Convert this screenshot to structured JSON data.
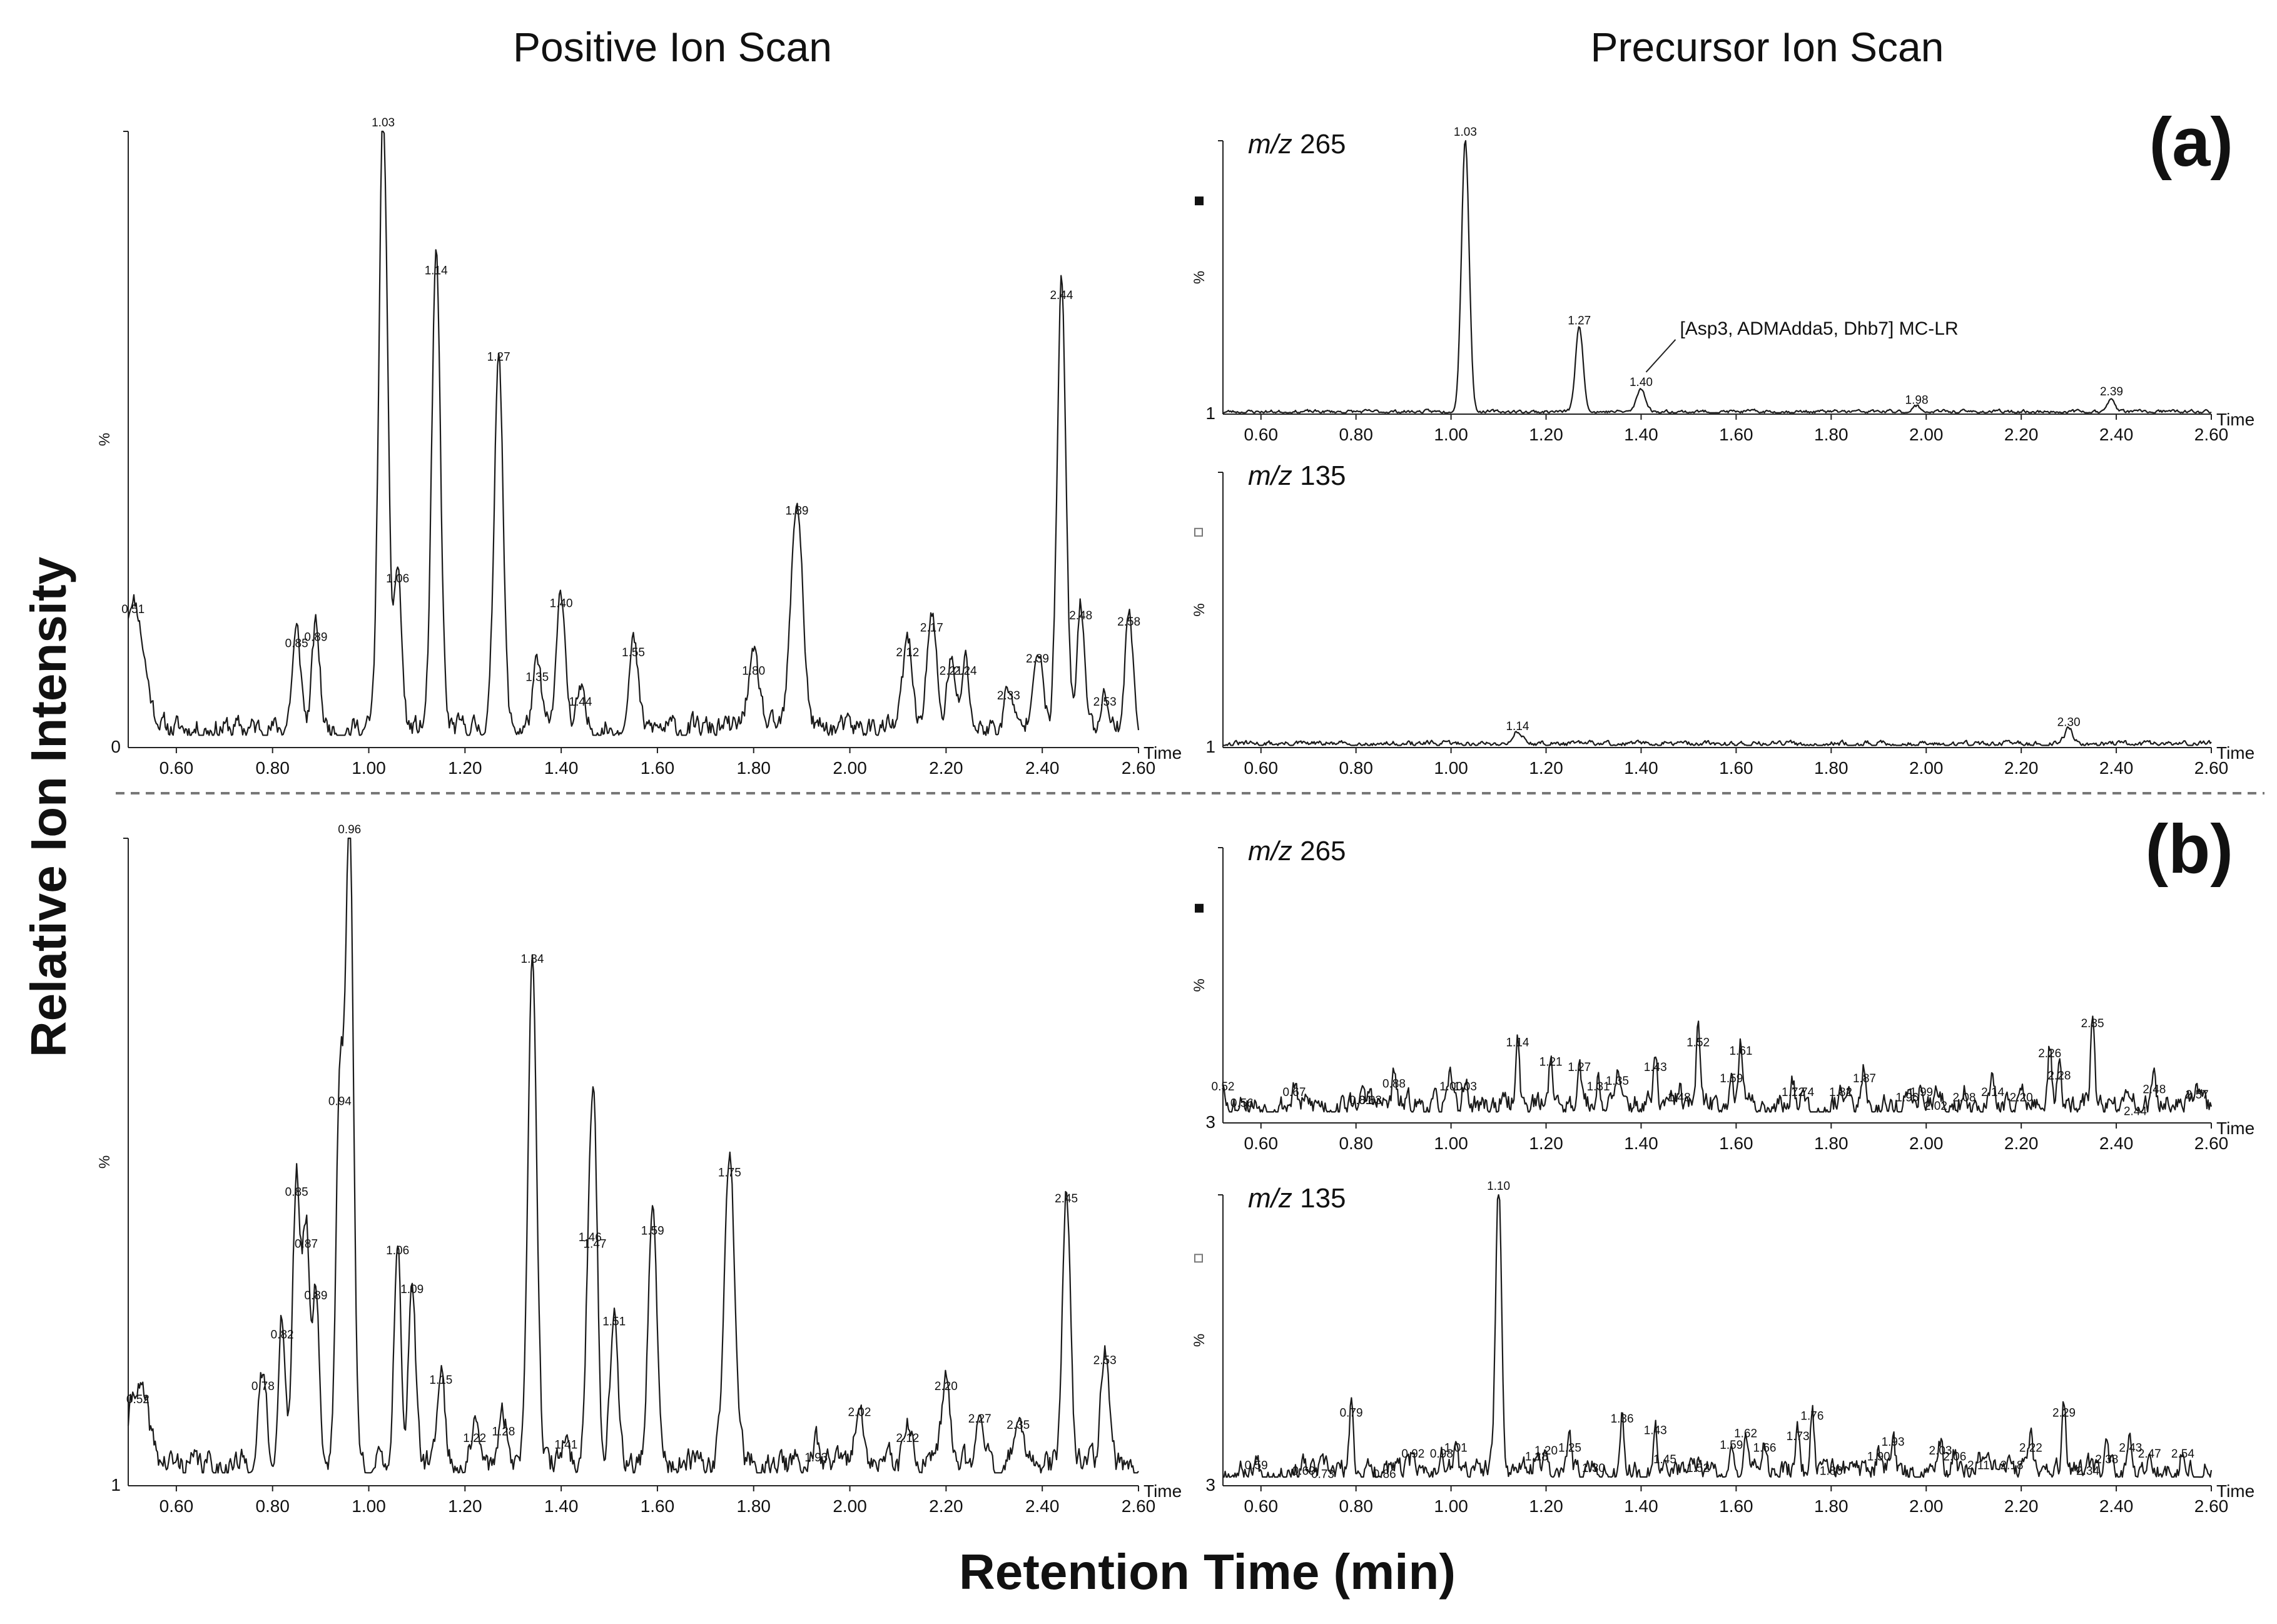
{
  "titles": {
    "left": "Positive Ion Scan",
    "right": "Precursor Ion Scan",
    "y_axis": "Relative Ion Intensity",
    "x_axis": "Retention Time (min)",
    "panel_a": "(a)",
    "panel_b": "(b)"
  },
  "chart_data": [
    {
      "id": "a-pos",
      "type": "line",
      "panel": "(a)",
      "column": "Positive Ion Scan",
      "trace_label": "",
      "ylabel": "%",
      "baseline_label": "0",
      "xlim": [
        0.5,
        2.6
      ],
      "xticks": [
        0.6,
        0.8,
        1.0,
        1.2,
        1.4,
        1.6,
        1.8,
        2.0,
        2.2,
        2.4,
        2.6
      ],
      "time_label": "Time",
      "noise": {
        "seed": 11,
        "amp": 0.035,
        "base": 0.02
      },
      "peaks": [
        [
          0.51,
          0.21,
          0.022
        ],
        [
          0.85,
          0.155,
          0.009
        ],
        [
          0.89,
          0.165,
          0.008
        ],
        [
          1.03,
          1.0,
          0.009
        ],
        [
          1.06,
          0.26,
          0.008
        ],
        [
          1.14,
          0.76,
          0.009
        ],
        [
          1.27,
          0.62,
          0.009
        ],
        [
          1.35,
          0.1,
          0.009
        ],
        [
          1.4,
          0.22,
          0.009
        ],
        [
          1.44,
          0.06,
          0.007
        ],
        [
          1.55,
          0.14,
          0.009
        ],
        [
          1.8,
          0.11,
          0.012
        ],
        [
          1.89,
          0.37,
          0.012
        ],
        [
          2.12,
          0.14,
          0.01
        ],
        [
          2.17,
          0.18,
          0.01
        ],
        [
          2.21,
          0.11,
          0.008
        ],
        [
          2.24,
          0.11,
          0.008
        ],
        [
          2.33,
          0.07,
          0.008
        ],
        [
          2.39,
          0.13,
          0.01
        ],
        [
          2.44,
          0.72,
          0.009
        ],
        [
          2.48,
          0.2,
          0.008
        ],
        [
          2.53,
          0.06,
          0.008
        ],
        [
          2.58,
          0.19,
          0.008
        ]
      ],
      "labels": [
        "0.51",
        "0.85",
        "0.89",
        "1.03",
        "1.06",
        "1.14",
        "1.27",
        "1.35",
        "1.40",
        "1.44",
        "1.55",
        "1.80",
        "1.89",
        "2.12",
        "2.17",
        "2.21",
        "2.24",
        "2.33",
        "2.39",
        "2.44",
        "2.48",
        "2.53",
        "2.58"
      ]
    },
    {
      "id": "a-265",
      "type": "line",
      "panel": "(a)",
      "column": "Precursor Ion Scan",
      "trace_label_prefix": "m/z",
      "trace_label_value": "265",
      "ylabel": "%",
      "baseline_label": "1",
      "xlim": [
        0.52,
        2.6
      ],
      "xticks": [
        0.6,
        0.8,
        1.0,
        1.2,
        1.4,
        1.6,
        1.8,
        2.0,
        2.2,
        2.4,
        2.6
      ],
      "time_label": "Time",
      "noise": {
        "seed": 23,
        "amp": 0.012,
        "base": 0.005
      },
      "peaks": [
        [
          1.03,
          1.0,
          0.008
        ],
        [
          1.27,
          0.31,
          0.008
        ],
        [
          1.4,
          0.085,
          0.009
        ],
        [
          1.98,
          0.02,
          0.008
        ],
        [
          2.39,
          0.05,
          0.007
        ]
      ],
      "labels": [
        "1.03",
        "1.27",
        "1.40",
        "1.98",
        "2.39"
      ],
      "annotation": {
        "text": "[Asp3, ADMAdda5, Dhb7] MC-LR",
        "peak": "1.40"
      }
    },
    {
      "id": "a-135",
      "type": "line",
      "panel": "(a)",
      "column": "Precursor Ion Scan",
      "trace_label_prefix": "m/z",
      "trace_label_value": "135",
      "ylabel": "%",
      "baseline_label": "1",
      "xlim": [
        0.52,
        2.6
      ],
      "xticks": [
        0.6,
        0.8,
        1.0,
        1.2,
        1.4,
        1.6,
        1.8,
        2.0,
        2.2,
        2.4,
        2.6
      ],
      "time_label": "Time",
      "noise": {
        "seed": 31,
        "amp": 0.018,
        "base": 0.008
      },
      "peaks": [
        [
          1.14,
          0.045,
          0.01
        ],
        [
          2.3,
          0.06,
          0.008
        ]
      ],
      "labels": [
        "1.14",
        "2.30"
      ]
    },
    {
      "id": "b-pos",
      "type": "line",
      "panel": "(b)",
      "column": "Positive Ion Scan",
      "trace_label": "",
      "ylabel": "%",
      "baseline_label": "1",
      "xlim": [
        0.5,
        2.6
      ],
      "xticks": [
        0.6,
        0.8,
        1.0,
        1.2,
        1.4,
        1.6,
        1.8,
        2.0,
        2.2,
        2.4,
        2.6
      ],
      "time_label": "Time",
      "noise": {
        "seed": 41,
        "amp": 0.04,
        "base": 0.02
      },
      "peaks": [
        [
          0.52,
          0.12,
          0.02
        ],
        [
          0.78,
          0.14,
          0.008
        ],
        [
          0.82,
          0.22,
          0.007
        ],
        [
          0.85,
          0.44,
          0.008
        ],
        [
          0.87,
          0.36,
          0.007
        ],
        [
          0.89,
          0.28,
          0.007
        ],
        [
          0.94,
          0.58,
          0.008
        ],
        [
          0.96,
          1.0,
          0.008
        ],
        [
          1.06,
          0.35,
          0.007
        ],
        [
          1.09,
          0.29,
          0.007
        ],
        [
          1.15,
          0.15,
          0.008
        ],
        [
          1.22,
          0.06,
          0.007
        ],
        [
          1.28,
          0.07,
          0.009
        ],
        [
          1.34,
          0.8,
          0.009
        ],
        [
          1.41,
          0.05,
          0.006
        ],
        [
          1.46,
          0.37,
          0.008
        ],
        [
          1.47,
          0.36,
          0.007
        ],
        [
          1.51,
          0.24,
          0.008
        ],
        [
          1.59,
          0.38,
          0.009
        ],
        [
          1.75,
          0.47,
          0.011
        ],
        [
          1.93,
          0.03,
          0.008
        ],
        [
          2.02,
          0.1,
          0.008
        ],
        [
          2.12,
          0.06,
          0.008
        ],
        [
          2.2,
          0.14,
          0.008
        ],
        [
          2.27,
          0.09,
          0.008
        ],
        [
          2.35,
          0.08,
          0.008
        ],
        [
          2.45,
          0.43,
          0.008
        ],
        [
          2.53,
          0.18,
          0.008
        ]
      ],
      "labels": [
        "0.52",
        "0.78",
        "0.82",
        "0.85",
        "0.87",
        "0.89",
        "0.94",
        "0.96",
        "1.06",
        "1.09",
        "1.15",
        "1.22",
        "1.28",
        "1.34",
        "1.41",
        "1.46",
        "1.47",
        "1.51",
        "1.59",
        "1.75",
        "1.93",
        "2.02",
        "2.12",
        "2.20",
        "2.27",
        "2.35",
        "2.45",
        "2.53"
      ]
    },
    {
      "id": "b-265",
      "type": "line",
      "panel": "(b)",
      "column": "Precursor Ion Scan",
      "trace_label_prefix": "m/z",
      "trace_label_value": "265",
      "ylabel": "%",
      "baseline_label": "3",
      "xlim": [
        0.52,
        2.6
      ],
      "xticks": [
        0.6,
        0.8,
        1.0,
        1.2,
        1.4,
        1.6,
        1.8,
        2.0,
        2.2,
        2.4,
        2.6
      ],
      "time_label": "Time",
      "noise": {
        "seed": 53,
        "amp": 0.08,
        "base": 0.04
      },
      "peaks": [
        [
          0.52,
          0.1,
          0.004
        ],
        [
          0.56,
          0.04,
          0.004
        ],
        [
          0.67,
          0.08,
          0.004
        ],
        [
          0.81,
          0.05,
          0.004
        ],
        [
          0.83,
          0.05,
          0.004
        ],
        [
          0.88,
          0.11,
          0.004
        ],
        [
          1.0,
          0.1,
          0.004
        ],
        [
          1.03,
          0.1,
          0.004
        ],
        [
          1.14,
          0.26,
          0.004
        ],
        [
          1.21,
          0.19,
          0.004
        ],
        [
          1.27,
          0.17,
          0.004
        ],
        [
          1.31,
          0.1,
          0.004
        ],
        [
          1.35,
          0.12,
          0.004
        ],
        [
          1.43,
          0.17,
          0.004
        ],
        [
          1.48,
          0.06,
          0.004
        ],
        [
          1.52,
          0.26,
          0.004
        ],
        [
          1.59,
          0.13,
          0.004
        ],
        [
          1.61,
          0.23,
          0.004
        ],
        [
          1.72,
          0.08,
          0.004
        ],
        [
          1.74,
          0.08,
          0.004
        ],
        [
          1.82,
          0.08,
          0.004
        ],
        [
          1.87,
          0.13,
          0.004
        ],
        [
          1.96,
          0.06,
          0.004
        ],
        [
          1.99,
          0.08,
          0.004
        ],
        [
          2.02,
          0.03,
          0.004
        ],
        [
          2.08,
          0.06,
          0.004
        ],
        [
          2.14,
          0.08,
          0.004
        ],
        [
          2.2,
          0.06,
          0.004
        ],
        [
          2.26,
          0.22,
          0.004
        ],
        [
          2.28,
          0.14,
          0.004
        ],
        [
          2.35,
          0.33,
          0.004
        ],
        [
          2.44,
          0.01,
          0.004
        ],
        [
          2.48,
          0.09,
          0.004
        ],
        [
          2.57,
          0.07,
          0.004
        ]
      ],
      "labels": [
        "0.52",
        "0.56",
        "0.67",
        "0.81",
        "0.83",
        "0.88",
        "1.00",
        "1.03",
        "1.14",
        "1.21",
        "1.27",
        "1.31",
        "1.35",
        "1.43",
        "1.48",
        "1.52",
        "1.59",
        "1.61",
        "1.72",
        "1.74",
        "1.82",
        "1.87",
        "1.96",
        "1.99",
        "2.02",
        "2.08",
        "2.14",
        "2.20",
        "2.26",
        "2.28",
        "2.35",
        "2.44",
        "2.48",
        "2.57"
      ]
    },
    {
      "id": "b-135",
      "type": "line",
      "panel": "(b)",
      "column": "Precursor Ion Scan",
      "trace_label_prefix": "m/z",
      "trace_label_value": "135",
      "ylabel": "%",
      "baseline_label": "3",
      "xlim": [
        0.52,
        2.6
      ],
      "xticks": [
        0.6,
        0.8,
        1.0,
        1.2,
        1.4,
        1.6,
        1.8,
        2.0,
        2.2,
        2.4,
        2.6
      ],
      "time_label": "Time",
      "noise": {
        "seed": 67,
        "amp": 0.07,
        "base": 0.03
      },
      "peaks": [
        [
          0.59,
          0.04,
          0.004
        ],
        [
          0.69,
          0.02,
          0.004
        ],
        [
          0.73,
          0.01,
          0.004
        ],
        [
          0.79,
          0.22,
          0.004
        ],
        [
          0.86,
          0.01,
          0.004
        ],
        [
          0.92,
          0.08,
          0.004
        ],
        [
          0.98,
          0.08,
          0.004
        ],
        [
          1.01,
          0.1,
          0.004
        ],
        [
          1.1,
          1.0,
          0.006
        ],
        [
          1.18,
          0.07,
          0.004
        ],
        [
          1.2,
          0.09,
          0.004
        ],
        [
          1.25,
          0.1,
          0.004
        ],
        [
          1.3,
          0.03,
          0.004
        ],
        [
          1.36,
          0.2,
          0.004
        ],
        [
          1.43,
          0.16,
          0.004
        ],
        [
          1.45,
          0.06,
          0.004
        ],
        [
          1.52,
          0.03,
          0.004
        ],
        [
          1.59,
          0.11,
          0.004
        ],
        [
          1.62,
          0.15,
          0.004
        ],
        [
          1.66,
          0.1,
          0.004
        ],
        [
          1.73,
          0.14,
          0.004
        ],
        [
          1.76,
          0.21,
          0.004
        ],
        [
          1.8,
          0.02,
          0.004
        ],
        [
          1.9,
          0.07,
          0.004
        ],
        [
          1.93,
          0.12,
          0.004
        ],
        [
          2.03,
          0.09,
          0.004
        ],
        [
          2.06,
          0.07,
          0.004
        ],
        [
          2.11,
          0.04,
          0.004
        ],
        [
          2.18,
          0.04,
          0.004
        ],
        [
          2.22,
          0.1,
          0.004
        ],
        [
          2.29,
          0.22,
          0.004
        ],
        [
          2.34,
          0.02,
          0.004
        ],
        [
          2.38,
          0.06,
          0.004
        ],
        [
          2.43,
          0.1,
          0.004
        ],
        [
          2.47,
          0.08,
          0.004
        ],
        [
          2.54,
          0.08,
          0.004
        ]
      ],
      "labels": [
        "0.59",
        "0.69",
        "0.73",
        "0.79",
        "0.86",
        "0.92",
        "0.98",
        "1.01",
        "1.10",
        "1.18",
        "1.20",
        "1.25",
        "1.30",
        "1.36",
        "1.43",
        "1.45",
        "1.52",
        "1.59",
        "1.62",
        "1.66",
        "1.73",
        "1.76",
        "1.80",
        "1.90",
        "1.93",
        "2.03",
        "2.06",
        "2.11",
        "2.18",
        "2.22",
        "2.29",
        "2.34",
        "2.38",
        "2.43",
        "2.47",
        "2.54"
      ]
    }
  ]
}
